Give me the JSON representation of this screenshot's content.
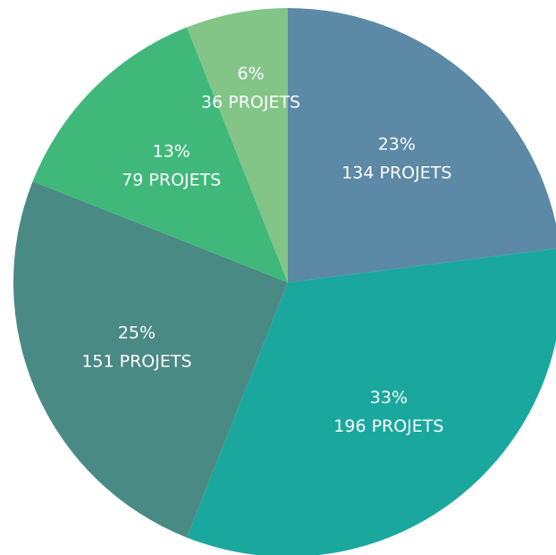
{
  "chart_data": {
    "type": "pie",
    "values": [
      23,
      33,
      25,
      13,
      6
    ],
    "value_labels": [
      "23%",
      "33%",
      "25%",
      "13%",
      "6%"
    ],
    "counts": [
      134,
      196,
      151,
      79,
      36
    ],
    "count_labels": [
      "134 PROJETS",
      "196 PROJETS",
      "151 PROJETS",
      "79 PROJETS",
      "36 PROJETS"
    ],
    "colors": [
      "#5b89a6",
      "#1aa89e",
      "#4a8a84",
      "#40b87a",
      "#82c587"
    ]
  }
}
